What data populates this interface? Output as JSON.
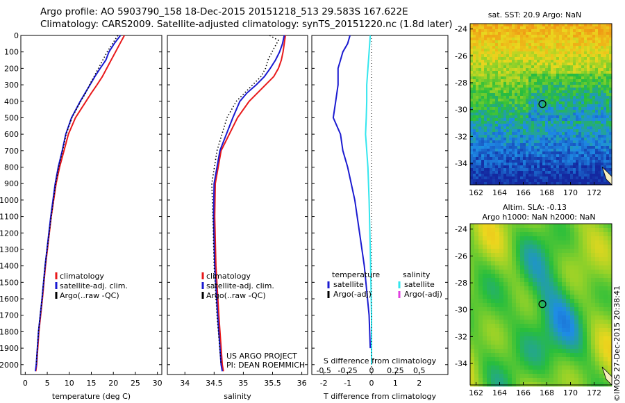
{
  "header": {
    "line1": "Argo profile: AO 5903790_158 18-Dec-2015 20151218_513 29.583S 167.622E",
    "line2": "Climatology: CARS2009. Satellite-adjusted climatology: synTS_20151220.nc (1.8d later)"
  },
  "colors": {
    "climatology": "#e8191b",
    "satellite": "#1a1ad0",
    "argo": "#000000",
    "sat_salinity": "#33e6ee",
    "argo_adj_salinity": "#e040e0"
  },
  "chart_data": [
    {
      "id": "temperature",
      "type": "line",
      "xlabel": "temperature (deg C)",
      "xlim": [
        -1,
        31
      ],
      "xticks": [
        "0",
        "5",
        "10",
        "15",
        "20",
        "25",
        "30"
      ],
      "ylim": [
        2060,
        0
      ],
      "yticks": [
        "0",
        "100",
        "200",
        "300",
        "400",
        "500",
        "600",
        "700",
        "800",
        "900",
        "1000",
        "1100",
        "1200",
        "1300",
        "1400",
        "1500",
        "1600",
        "1700",
        "1800",
        "1900",
        "2000"
      ],
      "legend": [
        "climatology",
        "satellite-adj. clim.",
        "Argo(..raw -QC)"
      ],
      "series": [
        {
          "name": "climatology",
          "color": "#e8191b",
          "x": [
            22.5,
            21.5,
            20.5,
            19.5,
            18.5,
            17.5,
            16.3,
            15.0,
            13.8,
            12.6,
            11.4,
            9.8,
            8.8,
            7.8,
            7.0,
            5.9,
            4.6,
            3.9,
            3.1,
            2.6,
            2.4
          ],
          "y": [
            0,
            50,
            100,
            150,
            200,
            250,
            300,
            350,
            400,
            450,
            500,
            600,
            700,
            800,
            900,
            1100,
            1400,
            1600,
            1800,
            2000,
            2040
          ]
        },
        {
          "name": "satellite-adj. clim.",
          "color": "#1a1ad0",
          "x": [
            21.6,
            20.2,
            19.0,
            18.3,
            17.0,
            15.8,
            14.7,
            13.6,
            12.5,
            11.5,
            10.5,
            9.2,
            8.4,
            7.5,
            6.8,
            5.8,
            4.5,
            3.8,
            3.0,
            2.5,
            2.3
          ],
          "y": [
            0,
            50,
            100,
            150,
            200,
            250,
            300,
            350,
            400,
            450,
            500,
            600,
            700,
            800,
            900,
            1100,
            1400,
            1600,
            1800,
            2000,
            2040
          ]
        },
        {
          "name": "Argo(..raw -QC)",
          "color": "#000000",
          "dotted": true,
          "x": [
            21.0,
            19.8,
            18.6,
            17.6,
            16.6,
            15.6,
            14.6,
            13.7,
            12.6,
            11.6,
            10.6,
            9.3,
            8.5,
            7.6,
            6.9,
            5.9,
            4.5,
            3.8,
            3.0,
            2.5
          ],
          "y": [
            0,
            50,
            100,
            150,
            200,
            250,
            300,
            350,
            400,
            450,
            500,
            600,
            700,
            800,
            900,
            1100,
            1400,
            1600,
            1800,
            2000
          ]
        }
      ]
    },
    {
      "id": "salinity",
      "type": "line",
      "xlabel": "salinity",
      "xlim": [
        33.7,
        36.1
      ],
      "xticks": [
        "34",
        "34.5",
        "35",
        "35.5",
        "36"
      ],
      "ylim": [
        2060,
        0
      ],
      "legend": [
        "climatology",
        "satellite-adj. clim.",
        "Argo(..raw -QC)"
      ],
      "annotation": [
        "US ARGO PROJECT",
        "PI: DEAN ROEMMICH"
      ],
      "series": [
        {
          "name": "climatology",
          "color": "#e8191b",
          "x": [
            35.72,
            35.7,
            35.68,
            35.65,
            35.6,
            35.52,
            35.38,
            35.24,
            35.1,
            34.9,
            34.62,
            34.52,
            34.51,
            34.53,
            34.58,
            34.64,
            34.66
          ],
          "y": [
            0,
            50,
            100,
            150,
            200,
            250,
            300,
            350,
            400,
            500,
            700,
            900,
            1100,
            1400,
            1700,
            2000,
            2040
          ]
        },
        {
          "name": "satellite-adj. clim.",
          "color": "#1a1ad0",
          "x": [
            35.7,
            35.67,
            35.62,
            35.55,
            35.46,
            35.36,
            35.22,
            35.06,
            34.94,
            34.82,
            34.6,
            34.5,
            34.49,
            34.51,
            34.56,
            34.62,
            34.64
          ],
          "y": [
            0,
            50,
            100,
            150,
            200,
            250,
            300,
            350,
            400,
            500,
            700,
            900,
            1100,
            1400,
            1700,
            2000,
            2040
          ]
        },
        {
          "name": "Argo(..raw -QC)",
          "color": "#000000",
          "dotted": true,
          "x": [
            35.45,
            35.6,
            35.52,
            35.42,
            35.38,
            35.3,
            35.16,
            35.02,
            34.88,
            34.72,
            34.55,
            34.46,
            34.48,
            34.5,
            34.55,
            34.62
          ],
          "y": [
            0,
            30,
            80,
            150,
            200,
            250,
            300,
            350,
            400,
            500,
            700,
            900,
            1100,
            1400,
            1700,
            2000
          ]
        }
      ]
    },
    {
      "id": "difference",
      "type": "line",
      "xlabel": "T difference from climatology",
      "xlabel2": "S difference from climatology",
      "xlim": [
        -2.5,
        3.2
      ],
      "xticks": [
        "-2",
        "-1",
        "0",
        "1",
        "2"
      ],
      "xticks2": [
        "-0.5",
        "-0.25",
        "0",
        "0.25",
        "0.5"
      ],
      "ylim": [
        2060,
        0
      ],
      "legend_left": [
        "temperature",
        "satellite",
        "Argo(-adj)"
      ],
      "legend_right": [
        "salinity",
        "satellite",
        "Argo(-adj)"
      ],
      "series": [
        {
          "name": "temperature satellite",
          "color": "#1a1ad0",
          "x": [
            -0.9,
            -1.0,
            -1.2,
            -1.3,
            -1.4,
            -1.4,
            -1.5,
            -1.6,
            -1.3,
            -1.2,
            -1.0,
            -0.7,
            -0.5,
            -0.3,
            -0.1,
            -0.05
          ],
          "y": [
            0,
            50,
            100,
            150,
            200,
            300,
            400,
            500,
            600,
            700,
            800,
            1000,
            1200,
            1400,
            1700,
            1900
          ]
        },
        {
          "name": "salinity satellite",
          "color": "#33e6ee",
          "x": [
            -0.05,
            -0.1,
            -0.15,
            -0.2,
            -0.2,
            -0.22,
            -0.25,
            -0.2,
            -0.15,
            -0.1,
            -0.05,
            0.0,
            0.0
          ],
          "y": [
            0,
            100,
            200,
            300,
            400,
            500,
            600,
            700,
            800,
            1000,
            1300,
            1700,
            2000
          ]
        }
      ]
    },
    {
      "id": "sst-map",
      "type": "heatmap",
      "title": "sat. SST: 20.9 Argo: NaN",
      "xticks": [
        "162",
        "164",
        "166",
        "168",
        "170",
        "172"
      ],
      "yticks": [
        "-24",
        "-26",
        "-28",
        "-30",
        "-32",
        "-34"
      ],
      "xlim": [
        161.5,
        173.5
      ],
      "ylim": [
        -35.6,
        -23.6
      ],
      "marker": {
        "lon": 167.622,
        "lat": -29.583
      }
    },
    {
      "id": "sla-map",
      "type": "heatmap",
      "title": "Altim. SLA: -0.13",
      "subtitle": "Argo h1000: NaN h2000: NaN",
      "xticks": [
        "162",
        "164",
        "166",
        "168",
        "170",
        "172"
      ],
      "yticks": [
        "-24",
        "-26",
        "-28",
        "-30",
        "-32",
        "-34"
      ],
      "xlim": [
        161.5,
        173.5
      ],
      "ylim": [
        -35.6,
        -23.6
      ],
      "marker": {
        "lon": 167.622,
        "lat": -29.583
      }
    }
  ],
  "credit": "©IMOS 27-Dec-2015 20:38:41"
}
